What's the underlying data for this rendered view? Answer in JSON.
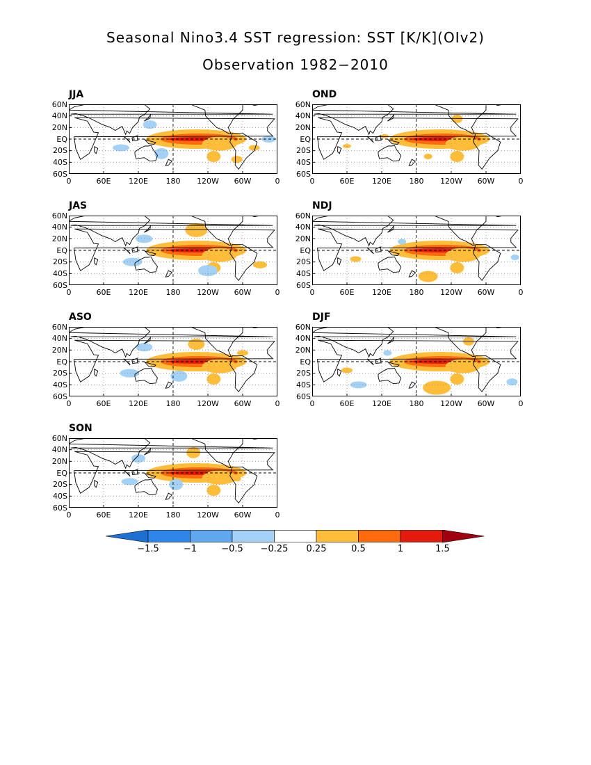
{
  "title": {
    "line1": "Seasonal Nino3.4 SST regression: SST [K/K](OIv2)",
    "line2": "Observation 1982−2010"
  },
  "panels": [
    {
      "label": "JJA"
    },
    {
      "label": "OND"
    },
    {
      "label": "JAS"
    },
    {
      "label": "NDJ"
    },
    {
      "label": "ASO"
    },
    {
      "label": "DJF"
    },
    {
      "label": "SON"
    }
  ],
  "y_ticks": [
    "60N",
    "40N",
    "20N",
    "EQ",
    "20S",
    "40S",
    "60S"
  ],
  "x_ticks": [
    "0",
    "60E",
    "120E",
    "180",
    "120W",
    "60W",
    "0"
  ],
  "colorbar": {
    "labels": [
      "−1.5",
      "−1",
      "−0.5",
      "−0.25",
      "0.25",
      "0.5",
      "1",
      "1.5"
    ],
    "colors": [
      "#1e6fd4",
      "#2e86ea",
      "#5fa8f0",
      "#a4d2f7",
      "#ffffff",
      "#ffbd3a",
      "#ff6a0a",
      "#e31a0c",
      "#a0000f"
    ]
  },
  "colors": {
    "positive_weak": "#ffbd3a",
    "positive_mid": "#ff6a0a",
    "positive_strong": "#e31a0c",
    "negative_weak": "#a4d2f7",
    "coast": "#000000"
  }
}
